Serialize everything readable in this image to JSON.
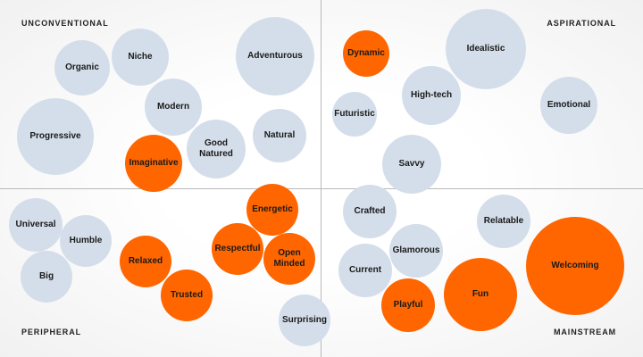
{
  "quadrant_labels": {
    "top_left": "UNCONVENTIONAL",
    "top_right": "ASPIRATIONAL",
    "bottom_left": "PERIPHERAL",
    "bottom_right": "MAINSTREAM"
  },
  "colors": {
    "highlight": "#ff6600",
    "neutral": "#d4deea",
    "text": "#1a1a1a"
  },
  "bubbles": [
    {
      "label": "Organic",
      "highlight": false
    },
    {
      "label": "Niche",
      "highlight": false
    },
    {
      "label": "Adventurous",
      "highlight": false
    },
    {
      "label": "Modern",
      "highlight": false
    },
    {
      "label": "Progressive",
      "highlight": false
    },
    {
      "label": "Imaginative",
      "highlight": true
    },
    {
      "label": "Good Natured",
      "highlight": false
    },
    {
      "label": "Natural",
      "highlight": false
    },
    {
      "label": "Dynamic",
      "highlight": true
    },
    {
      "label": "Idealistic",
      "highlight": false
    },
    {
      "label": "High-tech",
      "highlight": false
    },
    {
      "label": "Futuristic",
      "highlight": false
    },
    {
      "label": "Emotional",
      "highlight": false
    },
    {
      "label": "Savvy",
      "highlight": false
    },
    {
      "label": "Universal",
      "highlight": false
    },
    {
      "label": "Humble",
      "highlight": false
    },
    {
      "label": "Big",
      "highlight": false
    },
    {
      "label": "Relaxed",
      "highlight": true
    },
    {
      "label": "Trusted",
      "highlight": true
    },
    {
      "label": "Energetic",
      "highlight": true
    },
    {
      "label": "Respectful",
      "highlight": true
    },
    {
      "label": "Open Minded",
      "highlight": true
    },
    {
      "label": "Surprising",
      "highlight": false
    },
    {
      "label": "Crafted",
      "highlight": false
    },
    {
      "label": "Glamorous",
      "highlight": false
    },
    {
      "label": "Current",
      "highlight": false
    },
    {
      "label": "Playful",
      "highlight": true
    },
    {
      "label": "Relatable",
      "highlight": false
    },
    {
      "label": "Fun",
      "highlight": true
    },
    {
      "label": "Welcoming",
      "highlight": true
    }
  ]
}
